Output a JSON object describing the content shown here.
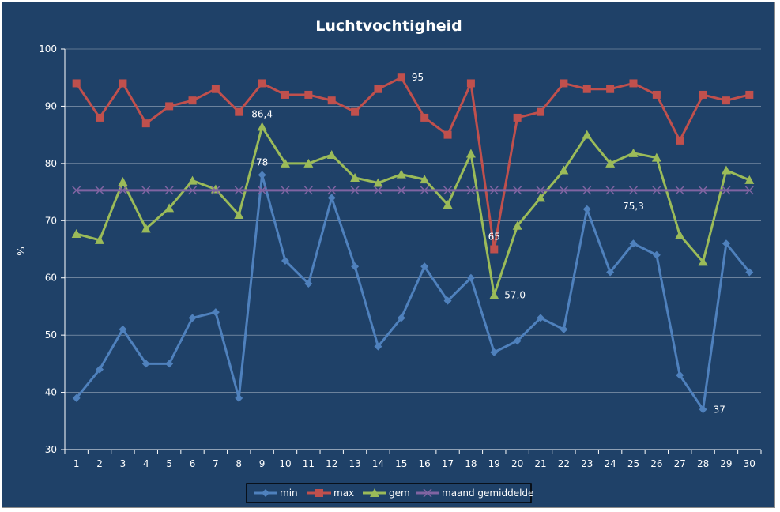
{
  "chart_data": {
    "type": "line",
    "title": "Luchtvochtigheid",
    "xlabel": "",
    "ylabel": "%",
    "ylim": [
      30,
      100
    ],
    "yticks": [
      30,
      40,
      50,
      60,
      70,
      80,
      90,
      100
    ],
    "grid": "horizontal",
    "legend_position": "bottom",
    "categories": [
      "1",
      "2",
      "3",
      "4",
      "5",
      "6",
      "7",
      "8",
      "9",
      "10",
      "11",
      "12",
      "13",
      "14",
      "15",
      "16",
      "17",
      "18",
      "19",
      "20",
      "21",
      "22",
      "23",
      "24",
      "25",
      "26",
      "27",
      "28",
      "29",
      "30"
    ],
    "series": [
      {
        "name": "min",
        "color": "#4f81bd",
        "marker": "diamond",
        "values": [
          39,
          44,
          51,
          45,
          45,
          53,
          54,
          39,
          78,
          63,
          59,
          74,
          62,
          48,
          53,
          62,
          56,
          60,
          47,
          49,
          53,
          51,
          72,
          61,
          66,
          64,
          43,
          37,
          66,
          61
        ]
      },
      {
        "name": "max",
        "color": "#c0504d",
        "marker": "square",
        "values": [
          94,
          88,
          94,
          87,
          90,
          91,
          93,
          89,
          94,
          92,
          92,
          91,
          89,
          93,
          95,
          88,
          85,
          94,
          65,
          88,
          89,
          94,
          93,
          93,
          94,
          92,
          84,
          92,
          91,
          92
        ]
      },
      {
        "name": "gem",
        "color": "#9bbb59",
        "marker": "triangle",
        "values": [
          67.7,
          66.6,
          76.8,
          68.6,
          72.2,
          77.0,
          75.5,
          71.0,
          86.4,
          80.0,
          80.0,
          81.5,
          77.5,
          76.6,
          78.1,
          77.2,
          72.8,
          81.7,
          57.0,
          69.1,
          74.0,
          78.8,
          85.0,
          80.0,
          81.8,
          81.0,
          67.5,
          62.8,
          78.8,
          77.1
        ]
      },
      {
        "name": "maand gemiddelde",
        "color": "#8064a2",
        "marker": "x",
        "values": [
          75.3,
          75.3,
          75.3,
          75.3,
          75.3,
          75.3,
          75.3,
          75.3,
          75.3,
          75.3,
          75.3,
          75.3,
          75.3,
          75.3,
          75.3,
          75.3,
          75.3,
          75.3,
          75.3,
          75.3,
          75.3,
          75.3,
          75.3,
          75.3,
          75.3,
          75.3,
          75.3,
          75.3,
          75.3,
          75.3
        ]
      }
    ],
    "data_labels": [
      {
        "series": "min",
        "index": 8,
        "text": "78",
        "pos": "above"
      },
      {
        "series": "min",
        "index": 27,
        "text": "37",
        "pos": "right"
      },
      {
        "series": "max",
        "index": 14,
        "text": "95",
        "pos": "right"
      },
      {
        "series": "max",
        "index": 18,
        "text": "65",
        "pos": "above"
      },
      {
        "series": "gem",
        "index": 8,
        "text": "86,4",
        "pos": "above"
      },
      {
        "series": "gem",
        "index": 18,
        "text": "57,0",
        "pos": "right"
      },
      {
        "series": "maand gemiddelde",
        "index": 24,
        "text": "75,3",
        "pos": "below"
      }
    ]
  }
}
